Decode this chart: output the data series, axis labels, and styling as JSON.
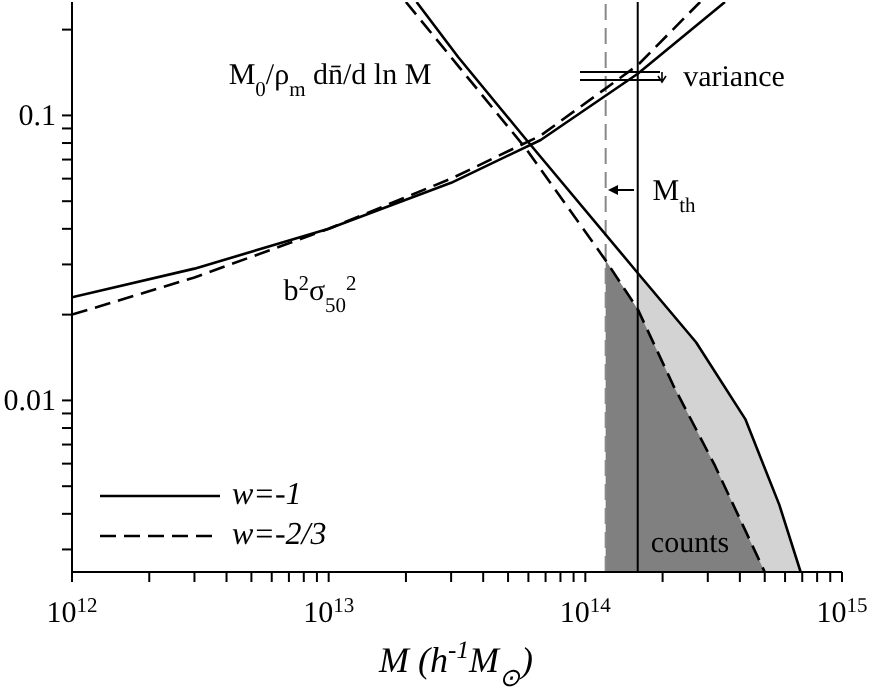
{
  "chart_data": {
    "type": "line",
    "xlabel": "M  (h$^{-1}$M$_{⊙}$)",
    "log": "xy",
    "xlim": [
      1000000000000.0,
      1000000000000000.0
    ],
    "ylim": [
      0.0025,
      0.25
    ],
    "xticks": [
      {
        "value": 1000000000000.0,
        "label": "10$^{12}$"
      },
      {
        "value": 2000000000000.0,
        "label": null
      },
      {
        "value": 3000000000000.0,
        "label": null
      },
      {
        "value": 4000000000000.0,
        "label": null
      },
      {
        "value": 5000000000000.0,
        "label": null
      },
      {
        "value": 6000000000000.0,
        "label": null
      },
      {
        "value": 7000000000000.0,
        "label": null
      },
      {
        "value": 8000000000000.0,
        "label": null
      },
      {
        "value": 9000000000000.0,
        "label": null
      },
      {
        "value": 10000000000000.0,
        "label": "10$^{13}$"
      },
      {
        "value": 20000000000000.0,
        "label": null
      },
      {
        "value": 30000000000000.0,
        "label": null
      },
      {
        "value": 40000000000000.0,
        "label": null
      },
      {
        "value": 50000000000000.0,
        "label": null
      },
      {
        "value": 60000000000000.0,
        "label": null
      },
      {
        "value": 70000000000000.0,
        "label": null
      },
      {
        "value": 80000000000000.0,
        "label": null
      },
      {
        "value": 90000000000000.0,
        "label": null
      },
      {
        "value": 100000000000000.0,
        "label": "10$^{14}$"
      },
      {
        "value": 200000000000000.0,
        "label": null
      },
      {
        "value": 300000000000000.0,
        "label": null
      },
      {
        "value": 400000000000000.0,
        "label": null
      },
      {
        "value": 500000000000000.0,
        "label": null
      },
      {
        "value": 600000000000000.0,
        "label": null
      },
      {
        "value": 700000000000000.0,
        "label": null
      },
      {
        "value": 800000000000000.0,
        "label": null
      },
      {
        "value": 900000000000000.0,
        "label": null
      },
      {
        "value": 1000000000000000.0,
        "label": "10$^{15}$"
      }
    ],
    "yticks": [
      {
        "value": 0.003,
        "label": null
      },
      {
        "value": 0.004,
        "label": null
      },
      {
        "value": 0.005,
        "label": null
      },
      {
        "value": 0.006,
        "label": null
      },
      {
        "value": 0.007,
        "label": null
      },
      {
        "value": 0.008,
        "label": null
      },
      {
        "value": 0.009,
        "label": null
      },
      0.01,
      {
        "value": 0.02,
        "label": null
      },
      {
        "value": 0.03,
        "label": null
      },
      {
        "value": 0.04,
        "label": null
      },
      {
        "value": 0.05,
        "label": null
      },
      {
        "value": 0.06,
        "label": null
      },
      {
        "value": 0.07,
        "label": null
      },
      {
        "value": 0.08,
        "label": null
      },
      {
        "value": 0.09,
        "label": null
      },
      0.1,
      {
        "value": 0.2,
        "label": null
      }
    ],
    "legend": "bottom left",
    "series": [
      {
        "type": "area",
        "color": "#d3d3d3",
        "x": [
          160000000000000.0,
          270000000000000.0,
          420000000000000.0,
          570000000000000.0,
          690000000000000.0
        ],
        "values": [
          0.028,
          0.016,
          0.0086,
          0.0043,
          0.0025
        ]
      },
      {
        "type": "area",
        "color": "#808080",
        "x": [
          120000000000000.0,
          160000000000000.0,
          220000000000000.0,
          320000000000000.0,
          500000000000000.0
        ],
        "values": [
          0.031,
          0.0209,
          0.0113,
          0.0059,
          0.0025
        ]
      },
      {
        "name": "w=-1",
        "color": "#000000",
        "line_style": "solid",
        "x": [
          1000000000000.0,
          3000000000000.0,
          10000000000000.0,
          30000000000000.0,
          67000000000000.0,
          160000000000000.0,
          350000000000000.0
        ],
        "values": [
          0.023,
          0.029,
          0.04,
          0.058,
          0.082,
          0.14,
          0.25
        ]
      },
      {
        "name": "w=-2/3",
        "color": "#000000",
        "line_style": "dashed",
        "x": [
          1000000000000.0,
          3000000000000.0,
          10000000000000.0,
          30000000000000.0,
          67000000000000.0,
          160000000000000.0,
          280000000000000.0
        ],
        "values": [
          0.02,
          0.027,
          0.04,
          0.06,
          0.085,
          0.15,
          0.25
        ]
      },
      {
        "color": "#000000",
        "line_style": "solid",
        "x": [
          22000000000000.0,
          32000000000000.0,
          59000000000000.0,
          160000000000000.0,
          270000000000000.0,
          420000000000000.0,
          570000000000000.0,
          690000000000000.0
        ],
        "values": [
          0.25,
          0.16,
          0.082,
          0.028,
          0.016,
          0.0086,
          0.0043,
          0.0025
        ]
      },
      {
        "color": "#000000",
        "line_style": "dashed",
        "x": [
          20000000000000.0,
          32000000000000.0,
          59000000000000.0,
          120000000000000.0,
          160000000000000.0,
          220000000000000.0,
          320000000000000.0,
          500000000000000.0
        ],
        "values": [
          0.25,
          0.149,
          0.076,
          0.031,
          0.0209,
          0.0113,
          0.0059,
          0.0025
        ]
      }
    ],
    "ref_lines": [
      {
        "axis": "x",
        "value": 120000000000000.0,
        "color": "#888888",
        "line_style": "dashed"
      },
      {
        "axis": "x",
        "value": 160000000000000.0,
        "color": "#000000",
        "line_style": "solid"
      }
    ],
    "annotations": [
      "M$_{0}$/ρ$_{m}$ dn̄/d ln M",
      "b$^{2}$σ$_{50}$$^{2}$",
      "variance",
      "M$_{th}$",
      "counts"
    ]
  }
}
